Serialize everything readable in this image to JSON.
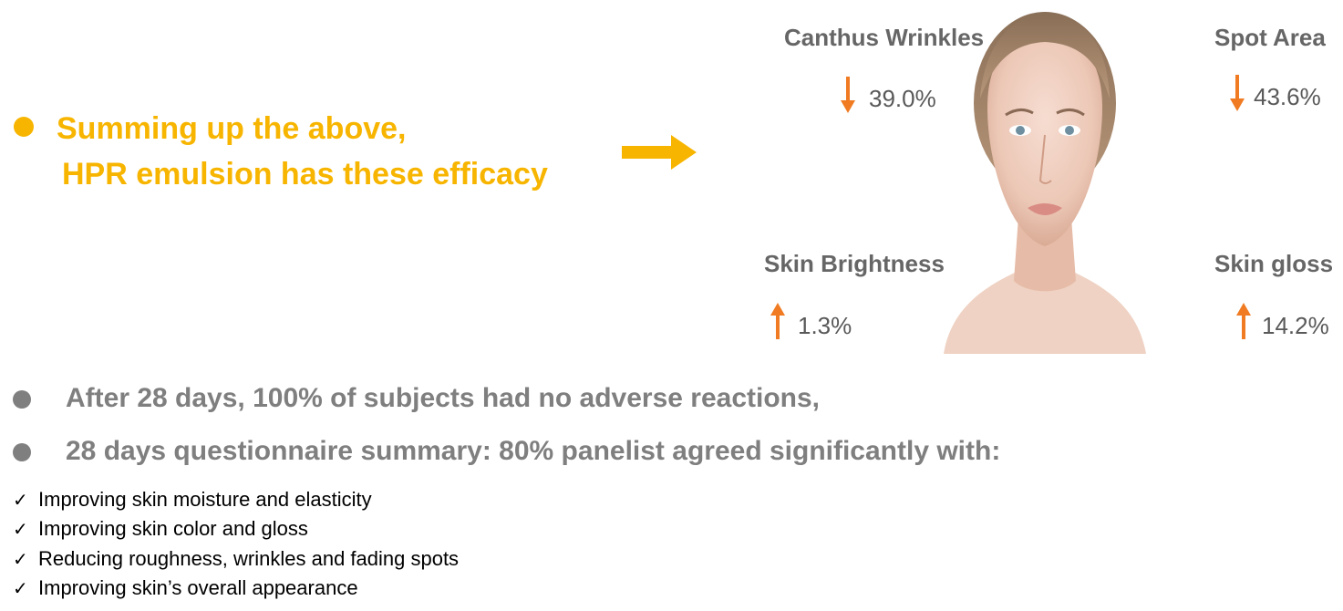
{
  "headline": {
    "line1": "Summing up the above,",
    "line2": "HPR emulsion has these efficacy",
    "color": "#f7b500"
  },
  "arrow": {
    "icon": "right-arrow-icon",
    "color": "#f7b500"
  },
  "metrics": {
    "canthus_wrinkles": {
      "label": "Canthus Wrinkles",
      "value": "39.0%",
      "direction": "down"
    },
    "spot_area": {
      "label": "Spot Area",
      "value": "43.6%",
      "direction": "down"
    },
    "skin_brightness": {
      "label": "Skin Brightness",
      "value": "1.3%",
      "direction": "up"
    },
    "skin_gloss": {
      "label": "Skin gloss",
      "value": "14.2%",
      "direction": "up"
    }
  },
  "metric_arrow_color": "#f07b22",
  "statements": [
    "After 28 days, 100% of subjects had no adverse reactions,",
    "28 days questionnaire summary: 80% panelist agreed significantly with:"
  ],
  "checklist": [
    {
      "mark": "✓",
      "text": "Improving skin moisture and elasticity"
    },
    {
      "mark": "✓",
      "text": "Improving skin color and gloss"
    },
    {
      "mark": "✓",
      "text": "Reducing roughness, wrinkles and fading spots"
    },
    {
      "mark": "✓",
      "text": "Improving skin’s overall appearance"
    }
  ]
}
